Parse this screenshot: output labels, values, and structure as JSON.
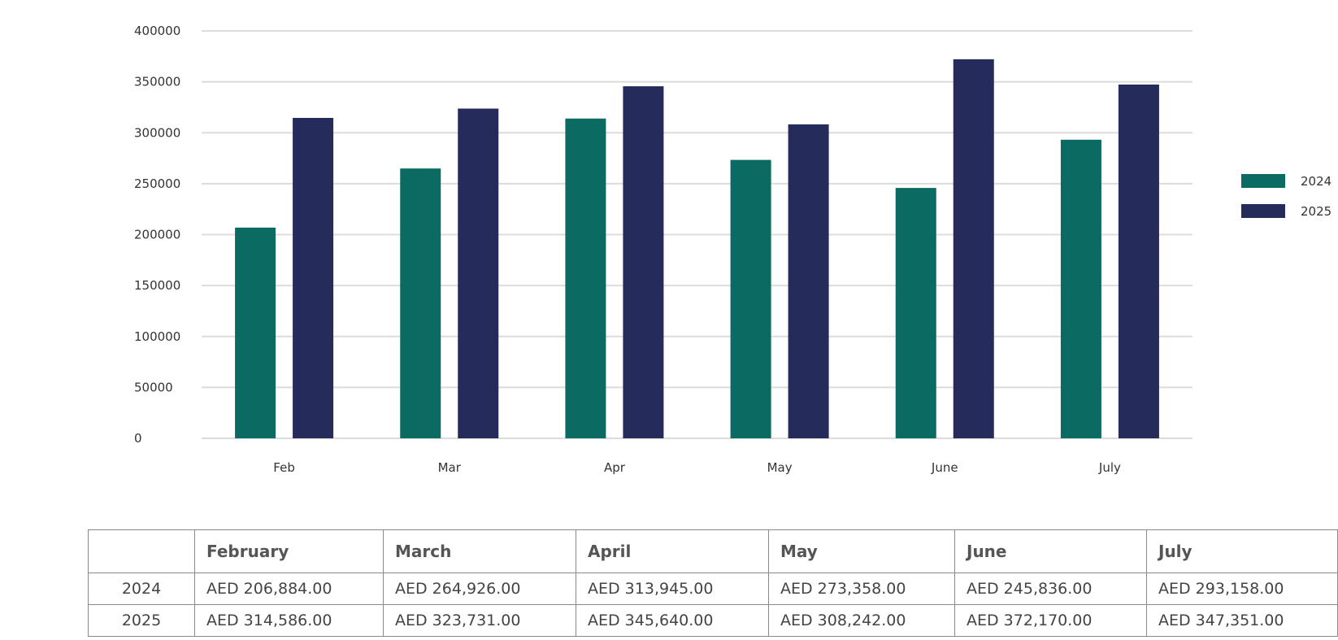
{
  "chart_data": {
    "type": "bar",
    "categories": [
      "Feb",
      "Mar",
      "Apr",
      "May",
      "June",
      "July"
    ],
    "series": [
      {
        "name": "2024",
        "values": [
          206884,
          264926,
          313945,
          273358,
          245836,
          293158
        ],
        "color": "#0b6b63"
      },
      {
        "name": "2025",
        "values": [
          314586,
          323731,
          345640,
          308242,
          372170,
          347351
        ],
        "color": "#252b5a"
      }
    ],
    "yticks": [
      0,
      50000,
      100000,
      150000,
      200000,
      250000,
      300000,
      350000,
      400000
    ],
    "ylim": [
      0,
      400000
    ],
    "grid": true,
    "legend_position": "right",
    "title": "",
    "xlabel": "",
    "ylabel": ""
  },
  "table": {
    "headers": [
      "",
      "February",
      "March",
      "April",
      "May",
      "June",
      "July"
    ],
    "rows": [
      {
        "year": "2024",
        "cells": [
          "AED 206,884.00",
          "AED 264,926.00",
          "AED 313,945.00",
          "AED 273,358.00",
          "AED 245,836.00",
          "AED 293,158.00"
        ]
      },
      {
        "year": "2025",
        "cells": [
          "AED 314,586.00",
          "AED 323,731.00",
          "AED 345,640.00",
          "AED 308,242.00",
          "AED 372,170.00",
          "AED 347,351.00"
        ]
      }
    ]
  }
}
